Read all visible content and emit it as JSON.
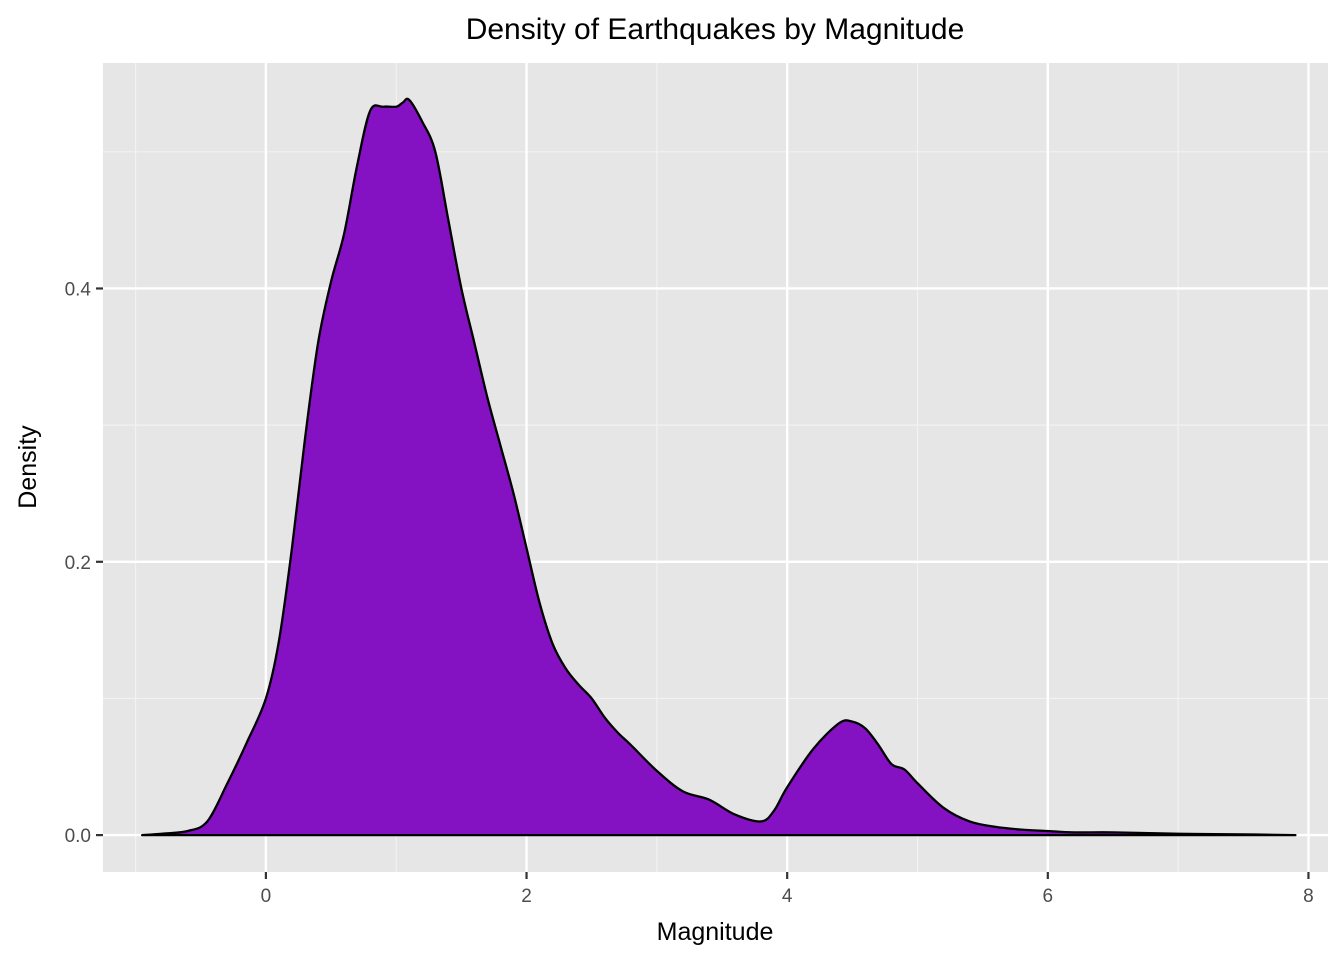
{
  "chart_data": {
    "type": "area",
    "title": "Density of Earthquakes by Magnitude",
    "xlabel": "Magnitude",
    "ylabel": "Density",
    "xlim": [
      -1.25,
      8.15
    ],
    "ylim": [
      -0.027,
      0.565
    ],
    "x_ticks": [
      0,
      2,
      4,
      6,
      8
    ],
    "x_tick_labels": [
      "0",
      "2",
      "4",
      "6",
      "8"
    ],
    "y_ticks": [
      0.0,
      0.2,
      0.4
    ],
    "y_tick_labels": [
      "0.0",
      "0.2",
      "0.4"
    ],
    "grid": true,
    "legend": "none",
    "fill_color": "#8411C2",
    "line_color": "#000000",
    "panel_background": "#E6E6E6",
    "series": [
      {
        "x": [
          -0.95,
          -0.8,
          -0.6,
          -0.45,
          -0.3,
          -0.15,
          0.0,
          0.1,
          0.2,
          0.3,
          0.4,
          0.5,
          0.6,
          0.7,
          0.8,
          0.9,
          1.0,
          1.05,
          1.1,
          1.2,
          1.3,
          1.4,
          1.5,
          1.6,
          1.7,
          1.8,
          1.9,
          2.0,
          2.1,
          2.2,
          2.3,
          2.4,
          2.5,
          2.6,
          2.7,
          2.8,
          3.0,
          3.2,
          3.4,
          3.6,
          3.8,
          3.9,
          4.0,
          4.2,
          4.4,
          4.5,
          4.6,
          4.7,
          4.8,
          4.9,
          5.0,
          5.2,
          5.4,
          5.6,
          5.8,
          6.0,
          6.2,
          6.5,
          7.0,
          7.5,
          7.9
        ],
        "y": [
          0.0,
          0.001,
          0.003,
          0.01,
          0.037,
          0.067,
          0.1,
          0.142,
          0.21,
          0.29,
          0.36,
          0.405,
          0.44,
          0.49,
          0.53,
          0.533,
          0.533,
          0.536,
          0.538,
          0.522,
          0.5,
          0.45,
          0.4,
          0.36,
          0.32,
          0.285,
          0.25,
          0.21,
          0.17,
          0.14,
          0.122,
          0.11,
          0.1,
          0.086,
          0.075,
          0.066,
          0.047,
          0.032,
          0.026,
          0.015,
          0.01,
          0.018,
          0.035,
          0.063,
          0.082,
          0.083,
          0.078,
          0.066,
          0.052,
          0.048,
          0.038,
          0.02,
          0.01,
          0.006,
          0.004,
          0.003,
          0.002,
          0.002,
          0.001,
          0.0005,
          0.0
        ]
      }
    ]
  }
}
